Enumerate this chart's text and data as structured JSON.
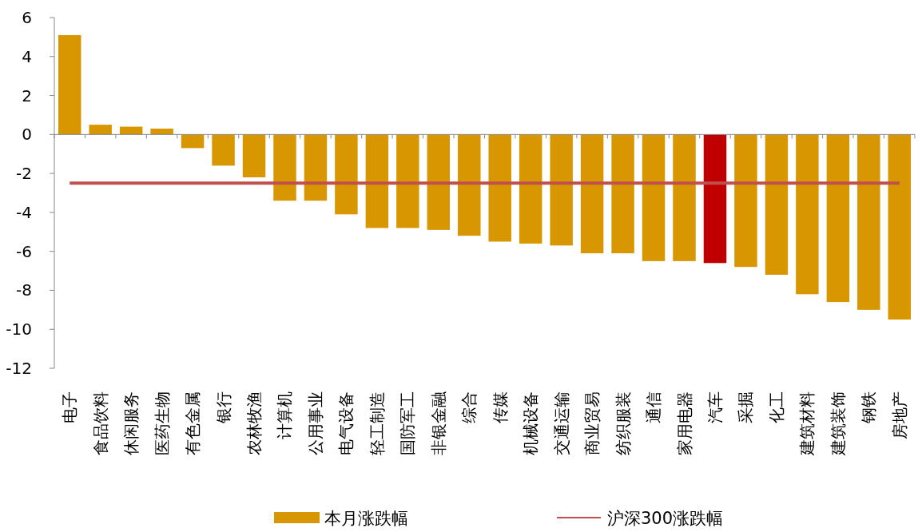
{
  "chart_data": {
    "type": "bar",
    "categories": [
      "电子",
      "食品饮料",
      "休闲服务",
      "医药生物",
      "有色金属",
      "银行",
      "农林牧渔",
      "计算机",
      "公用事业",
      "电气设备",
      "轻工制造",
      "国防军工",
      "非银金融",
      "综合",
      "传媒",
      "机械设备",
      "交通运输",
      "商业贸易",
      "纺织服装",
      "通信",
      "家用电器",
      "汽车",
      "采掘",
      "化工",
      "建筑材料",
      "建筑装饰",
      "钢铁",
      "房地产"
    ],
    "series": [
      {
        "name": "本月涨跌幅",
        "color": "#d89600",
        "colors": [
          "#d89600",
          "#d89600",
          "#d89600",
          "#d89600",
          "#d89600",
          "#d89600",
          "#d89600",
          "#d89600",
          "#d89600",
          "#d89600",
          "#d89600",
          "#d89600",
          "#d89600",
          "#d89600",
          "#d89600",
          "#d89600",
          "#d89600",
          "#d89600",
          "#d89600",
          "#d89600",
          "#d89600",
          "#c00000",
          "#d89600",
          "#d89600",
          "#d89600",
          "#d89600",
          "#d89600",
          "#d89600"
        ],
        "values": [
          5.1,
          0.5,
          0.4,
          0.3,
          -0.7,
          -1.6,
          -2.2,
          -3.4,
          -3.4,
          -4.1,
          -4.8,
          -4.8,
          -4.9,
          -5.2,
          -5.5,
          -5.6,
          -5.7,
          -6.1,
          -6.1,
          -6.5,
          -6.5,
          -6.6,
          -6.8,
          -7.2,
          -8.2,
          -8.6,
          -9.0,
          -9.5
        ]
      }
    ],
    "ref_lines": [
      {
        "axis": "y",
        "value": -2.5,
        "label": "沪深300涨跌幅",
        "color": "#c0504d"
      }
    ],
    "ylim": [
      -12,
      6
    ],
    "yticks": [
      -12,
      -10,
      -8,
      -6,
      -4,
      -2,
      0,
      2,
      4,
      6
    ],
    "legend": "bottom"
  }
}
